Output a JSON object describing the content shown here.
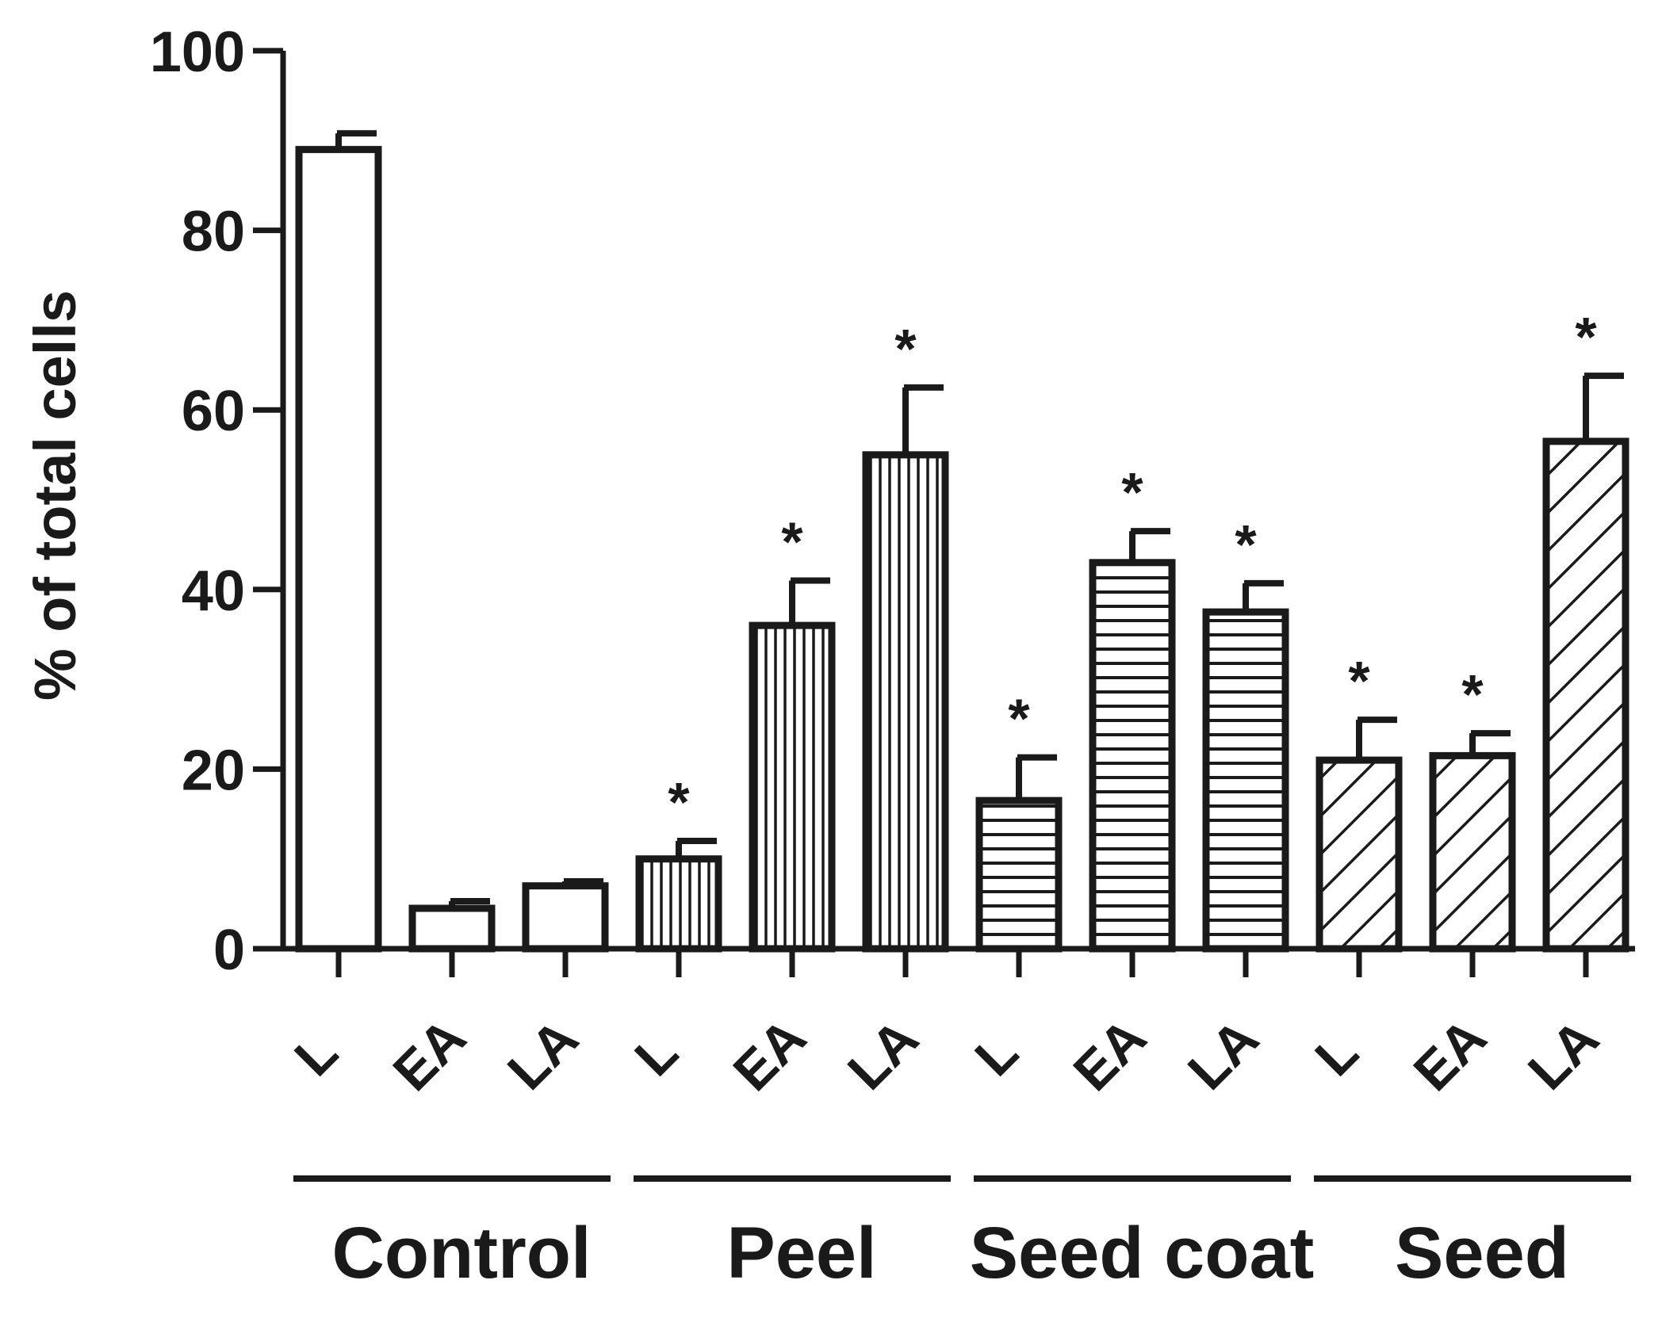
{
  "chart_data": {
    "type": "bar",
    "ylabel": "% of total cells",
    "xlabel": "",
    "ylim": [
      0,
      100
    ],
    "yticks": [
      0,
      20,
      40,
      60,
      80,
      100
    ],
    "groups": [
      {
        "name": "Control",
        "pattern": "none"
      },
      {
        "name": "Peel",
        "pattern": "vertical"
      },
      {
        "name": "Seed coat",
        "pattern": "horizontal"
      },
      {
        "name": "Seed",
        "pattern": "diagonal"
      }
    ],
    "categories": [
      "L",
      "EA",
      "LA"
    ],
    "significance_marker": "*",
    "bars": [
      {
        "group": "Control",
        "category": "L",
        "value": 89,
        "error": 1.8,
        "significant": false
      },
      {
        "group": "Control",
        "category": "EA",
        "value": 4.5,
        "error": 0.8,
        "significant": false
      },
      {
        "group": "Control",
        "category": "LA",
        "value": 7,
        "error": 0.5,
        "significant": false
      },
      {
        "group": "Peel",
        "category": "L",
        "value": 10,
        "error": 2,
        "significant": true
      },
      {
        "group": "Peel",
        "category": "EA",
        "value": 36,
        "error": 5,
        "significant": true
      },
      {
        "group": "Peel",
        "category": "LA",
        "value": 55,
        "error": 7.5,
        "significant": true
      },
      {
        "group": "Seed coat",
        "category": "L",
        "value": 16.5,
        "error": 4.8,
        "significant": true
      },
      {
        "group": "Seed coat",
        "category": "EA",
        "value": 43,
        "error": 3.5,
        "significant": true
      },
      {
        "group": "Seed coat",
        "category": "LA",
        "value": 37.5,
        "error": 3.2,
        "significant": true
      },
      {
        "group": "Seed",
        "category": "L",
        "value": 21,
        "error": 4.5,
        "significant": true
      },
      {
        "group": "Seed",
        "category": "EA",
        "value": 21.5,
        "error": 2.5,
        "significant": true
      },
      {
        "group": "Seed",
        "category": "LA",
        "value": 56.5,
        "error": 7.3,
        "significant": true
      }
    ]
  }
}
